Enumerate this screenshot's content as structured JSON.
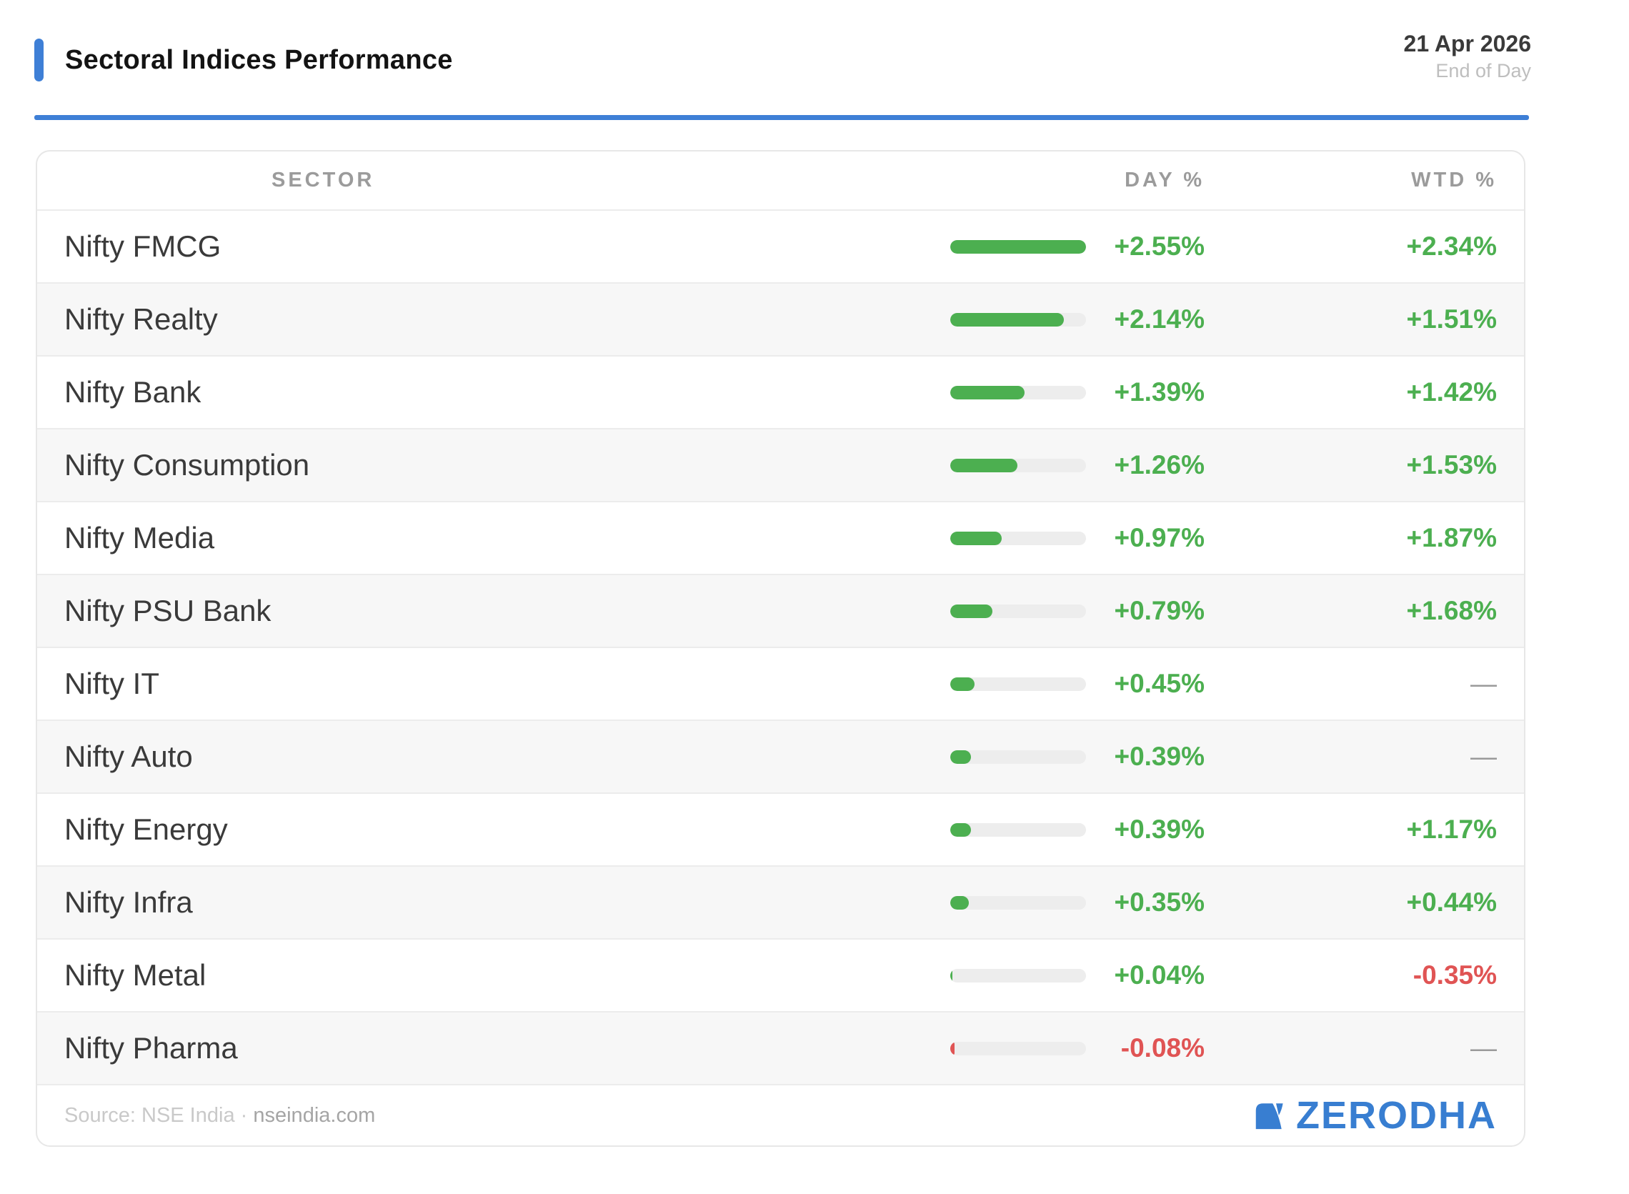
{
  "page": {
    "title": "Sectoral Indices Performance",
    "date": "21 Apr 2026",
    "date_sub": "End of Day"
  },
  "table": {
    "headers": {
      "sector": "SECTOR",
      "day": "DAY %",
      "wtd": "WTD %"
    },
    "bar_max": 2.55,
    "rows": [
      {
        "sector": "Nifty FMCG",
        "day": 2.55,
        "day_label": "+2.55%",
        "wtd": 2.34,
        "wtd_label": "+2.34%"
      },
      {
        "sector": "Nifty Realty",
        "day": 2.14,
        "day_label": "+2.14%",
        "wtd": 1.51,
        "wtd_label": "+1.51%"
      },
      {
        "sector": "Nifty Bank",
        "day": 1.39,
        "day_label": "+1.39%",
        "wtd": 1.42,
        "wtd_label": "+1.42%"
      },
      {
        "sector": "Nifty Consumption",
        "day": 1.26,
        "day_label": "+1.26%",
        "wtd": 1.53,
        "wtd_label": "+1.53%"
      },
      {
        "sector": "Nifty Media",
        "day": 0.97,
        "day_label": "+0.97%",
        "wtd": 1.87,
        "wtd_label": "+1.87%"
      },
      {
        "sector": "Nifty PSU Bank",
        "day": 0.79,
        "day_label": "+0.79%",
        "wtd": 1.68,
        "wtd_label": "+1.68%"
      },
      {
        "sector": "Nifty IT",
        "day": 0.45,
        "day_label": "+0.45%",
        "wtd": null,
        "wtd_label": "—"
      },
      {
        "sector": "Nifty Auto",
        "day": 0.39,
        "day_label": "+0.39%",
        "wtd": null,
        "wtd_label": "—"
      },
      {
        "sector": "Nifty Energy",
        "day": 0.39,
        "day_label": "+0.39%",
        "wtd": 1.17,
        "wtd_label": "+1.17%"
      },
      {
        "sector": "Nifty Infra",
        "day": 0.35,
        "day_label": "+0.35%",
        "wtd": 0.44,
        "wtd_label": "+0.44%"
      },
      {
        "sector": "Nifty Metal",
        "day": 0.04,
        "day_label": "+0.04%",
        "wtd": -0.35,
        "wtd_label": "-0.35%"
      },
      {
        "sector": "Nifty Pharma",
        "day": -0.08,
        "day_label": "-0.08%",
        "wtd": null,
        "wtd_label": "—"
      }
    ]
  },
  "footer": {
    "source_prefix": "Source: NSE India ·",
    "source_link": "nseindia.com",
    "brand": "ZERODHA",
    "brand_icon": "zerodha-kite-mark"
  },
  "colors": {
    "accent_blue": "#3E7FD6",
    "brand_blue": "#387ED1",
    "positive_green": "#4CAF50",
    "negative_red": "#E05454",
    "bar_track": "#EDEDED"
  },
  "chart_data": {
    "type": "table",
    "title": "Sectoral Indices Performance",
    "date": "21 Apr 2026",
    "period": "End of Day",
    "categories": [
      "Nifty FMCG",
      "Nifty Realty",
      "Nifty Bank",
      "Nifty Consumption",
      "Nifty Media",
      "Nifty PSU Bank",
      "Nifty IT",
      "Nifty Auto",
      "Nifty Energy",
      "Nifty Infra",
      "Nifty Metal",
      "Nifty Pharma"
    ],
    "series": [
      {
        "name": "DAY %",
        "values": [
          2.55,
          2.14,
          1.39,
          1.26,
          0.97,
          0.79,
          0.45,
          0.39,
          0.39,
          0.35,
          0.04,
          -0.08
        ]
      },
      {
        "name": "WTD %",
        "values": [
          2.34,
          1.51,
          1.42,
          1.53,
          1.87,
          1.68,
          null,
          null,
          1.17,
          0.44,
          -0.35,
          null
        ]
      }
    ],
    "bar_visualization": {
      "column": "DAY %",
      "scale_max": 2.55,
      "positive_color": "#4CAF50",
      "negative_color": "#E05454"
    },
    "source": "NSE India · nseindia.com"
  }
}
